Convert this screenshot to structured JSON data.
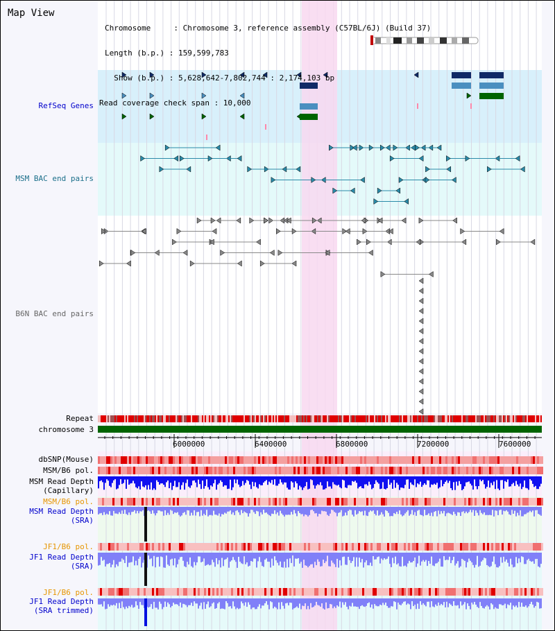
{
  "header": {
    "title": "Map View",
    "lines": [
      "Chromosome     : Chromosome 3, reference assembly (C57BL/6J) (Build 37)",
      "Length (b.p.) : 159,599,783",
      "  Show (b.p.) : 5,628,642-7,802,744 : 2,174,103 bp",
      "Read coverage check span : 10,000"
    ]
  },
  "tracks": {
    "refseq": "RefSeq Genes",
    "msm_bac": "MSM BAC end pairs",
    "b6n_bac": "B6N BAC end pairs",
    "repeat": "Repeat",
    "chromosome": "chromosome 3",
    "dbsnp": "dbSNP(Mouse)",
    "msm_b6_pol_1": "MSM/B6 pol.",
    "msm_read_depth_cap_1": "MSM Read Depth",
    "msm_read_depth_cap_2": "(Capillary)",
    "msm_b6_pol_2": "MSM/B6 pol.",
    "msm_read_depth_sra_1": "MSM Read Depth",
    "msm_read_depth_sra_2": "(SRA)",
    "jf1_b6_pol_1": "JF1/B6 pol.",
    "jf1_read_depth_sra_1": "JF1 Read Depth",
    "jf1_read_depth_sra_2": "(SRA)",
    "jf1_b6_pol_2": "JF1/B6 pol.",
    "jf1_read_depth_trim_1": "JF1 Read Depth",
    "jf1_read_depth_trim_2": "(SRA trimmed)"
  },
  "axis": {
    "ticks": [
      "6000000",
      "6400000",
      "6800000",
      "7200000",
      "7600000"
    ]
  },
  "colors": {
    "highlight": "#f8d8f0",
    "refseq_bg": "#d8f0fb",
    "msm_bg": "#e4fafa",
    "gene_dark": "#102a66",
    "gene_mid": "#4a8fc0",
    "gene_green": "#006400",
    "repeat_red": "#e00000",
    "chrom_green": "#006400",
    "depth_blue": "#1010f0",
    "depth_light": "#8080f8"
  }
}
